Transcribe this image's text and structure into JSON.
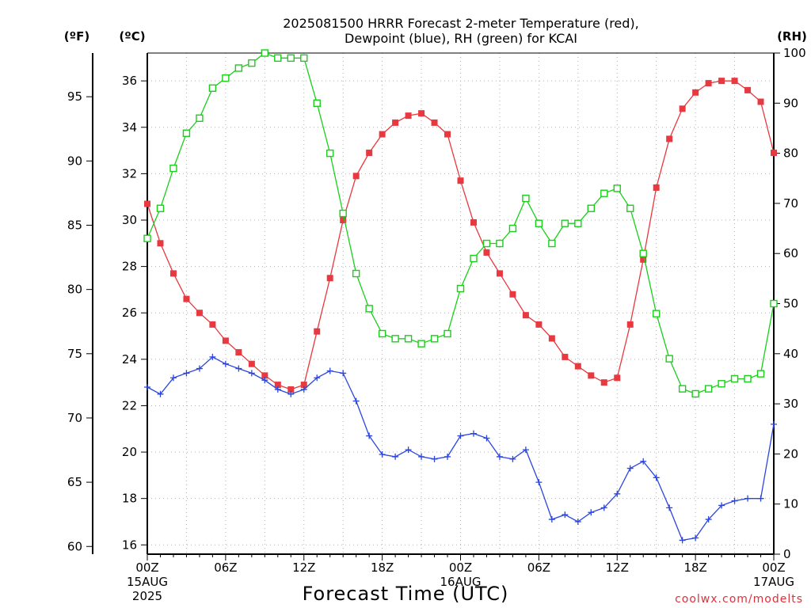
{
  "title": {
    "line1": "2025081500 HRRR Forecast 2-meter Temperature (red),",
    "line2": "Dewpoint (blue), RH (green) for KCAI"
  },
  "axes": {
    "left_f_unit": "(ºF)",
    "left_c_unit": "(ºC)",
    "right_unit": "(RH)",
    "xlabel": "Forecast Time (UTC)",
    "f_ticks": [
      "60",
      "65",
      "70",
      "75",
      "80",
      "85",
      "90",
      "95"
    ],
    "c_ticks": [
      "16",
      "18",
      "20",
      "22",
      "24",
      "26",
      "28",
      "30",
      "32",
      "34",
      "36"
    ],
    "rh_ticks": [
      "0",
      "10",
      "20",
      "30",
      "40",
      "50",
      "60",
      "70",
      "80",
      "90",
      "100"
    ],
    "x_ticks": [
      {
        "label": "00Z",
        "sub1": "15AUG",
        "sub2": "2025",
        "hour": 0
      },
      {
        "label": "06Z",
        "sub1": "",
        "sub2": "",
        "hour": 6
      },
      {
        "label": "12Z",
        "sub1": "",
        "sub2": "",
        "hour": 12
      },
      {
        "label": "18Z",
        "sub1": "",
        "sub2": "",
        "hour": 18
      },
      {
        "label": "00Z",
        "sub1": "16AUG",
        "sub2": "",
        "hour": 24
      },
      {
        "label": "06Z",
        "sub1": "",
        "sub2": "",
        "hour": 30
      },
      {
        "label": "12Z",
        "sub1": "",
        "sub2": "",
        "hour": 36
      },
      {
        "label": "18Z",
        "sub1": "",
        "sub2": "",
        "hour": 42
      },
      {
        "label": "00Z",
        "sub1": "17AUG",
        "sub2": "",
        "hour": 48
      }
    ]
  },
  "credit": "coolwx.com/modelts",
  "colors": {
    "temperature": "#e8383d",
    "temperature_marker": "#e83840",
    "dewpoint": "#2a45e0",
    "rh": "#18d018",
    "grid": "#b0b0b0"
  },
  "chart_data": {
    "type": "line",
    "x_unit": "forecast hour from 2025081500 UTC",
    "x": [
      0,
      1,
      2,
      3,
      4,
      5,
      6,
      7,
      8,
      9,
      10,
      11,
      12,
      13,
      14,
      15,
      16,
      17,
      18,
      19,
      20,
      21,
      22,
      23,
      24,
      25,
      26,
      27,
      28,
      29,
      30,
      31,
      32,
      33,
      34,
      35,
      36,
      37,
      38,
      39,
      40,
      41,
      42,
      43,
      44,
      45,
      46,
      47,
      48
    ],
    "ylim_c": [
      15.6,
      37.2
    ],
    "ylim_f": [
      59.4,
      98.4
    ],
    "ylim_rh": [
      0,
      100
    ],
    "grid": true,
    "series": [
      {
        "name": "2-meter Temperature (red)",
        "axis": "c",
        "marker": "filled-square",
        "values": [
          30.7,
          29.0,
          27.7,
          26.6,
          26.0,
          25.5,
          24.8,
          24.3,
          23.8,
          23.3,
          22.9,
          22.7,
          22.9,
          25.2,
          27.5,
          30.0,
          31.9,
          32.9,
          33.7,
          34.2,
          34.5,
          34.6,
          34.2,
          33.7,
          31.7,
          29.9,
          28.6,
          27.7,
          26.8,
          25.9,
          25.5,
          24.9,
          24.1,
          23.7,
          23.3,
          23.0,
          23.2,
          25.5,
          28.3,
          31.4,
          33.5,
          34.8,
          35.5,
          35.9,
          36.0,
          36.0,
          35.6,
          35.1,
          32.9
        ]
      },
      {
        "name": "Dewpoint (blue)",
        "axis": "c",
        "marker": "plus",
        "values": [
          22.8,
          22.5,
          23.2,
          23.4,
          23.6,
          24.1,
          23.8,
          23.6,
          23.4,
          23.1,
          22.7,
          22.5,
          22.7,
          23.2,
          23.5,
          23.4,
          22.2,
          20.7,
          19.9,
          19.8,
          20.1,
          19.8,
          19.7,
          19.8,
          20.7,
          20.8,
          20.6,
          19.8,
          19.7,
          20.1,
          18.7,
          17.1,
          17.3,
          17.0,
          17.4,
          17.6,
          18.2,
          19.3,
          19.6,
          18.9,
          17.6,
          16.2,
          16.3,
          17.1,
          17.7,
          17.9,
          18.0,
          18.0,
          21.2
        ]
      },
      {
        "name": "RH (green)",
        "axis": "rh",
        "marker": "open-square",
        "values": [
          63,
          69,
          77,
          84,
          87,
          93,
          95,
          97,
          98,
          100,
          99,
          99,
          99,
          90,
          80,
          68,
          56,
          49,
          44,
          43,
          43,
          42,
          43,
          44,
          53,
          59,
          62,
          62,
          65,
          71,
          66,
          62,
          66,
          66,
          69,
          72,
          73,
          69,
          60,
          48,
          39,
          33,
          32,
          33,
          34,
          35,
          35,
          36,
          50
        ]
      }
    ]
  }
}
